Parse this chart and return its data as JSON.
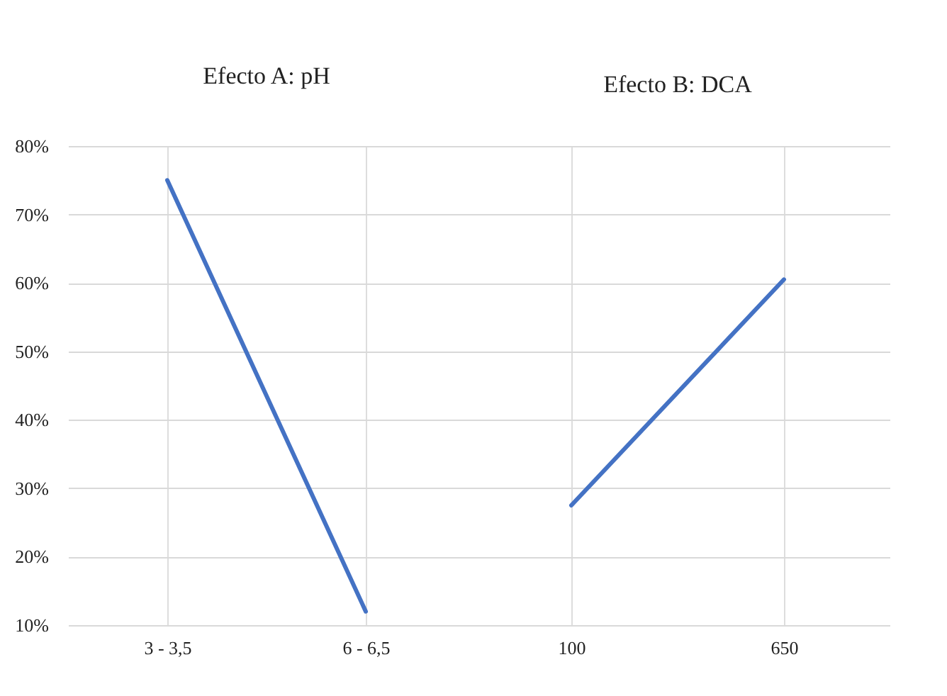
{
  "chart_data": [
    {
      "type": "line",
      "title": "Efecto A: pH",
      "categories": [
        "3 - 3,5",
        "6 - 6,5"
      ],
      "series": [
        {
          "color": "#4472c4",
          "values": [
            75,
            12
          ]
        }
      ],
      "ylim": [
        10,
        80
      ],
      "yticks": [
        {
          "value": 10,
          "label": "10%"
        },
        {
          "value": 20,
          "label": "20%"
        },
        {
          "value": 30,
          "label": "30%"
        },
        {
          "value": 40,
          "label": "40%"
        },
        {
          "value": 50,
          "label": "50%"
        },
        {
          "value": 60,
          "label": "60%"
        },
        {
          "value": 70,
          "label": "70%"
        },
        {
          "value": 80,
          "label": "80%"
        }
      ],
      "grid": true,
      "legend": false
    },
    {
      "type": "line",
      "title": "Efecto B: DCA",
      "categories": [
        "100",
        "650"
      ],
      "series": [
        {
          "color": "#4472c4",
          "values": [
            27.5,
            60.5
          ]
        }
      ],
      "ylim": [
        10,
        80
      ],
      "yticks": [
        10,
        20,
        30,
        40,
        50,
        60,
        70,
        80
      ],
      "grid": true,
      "legend": false,
      "tick_labels": "x"
    }
  ]
}
